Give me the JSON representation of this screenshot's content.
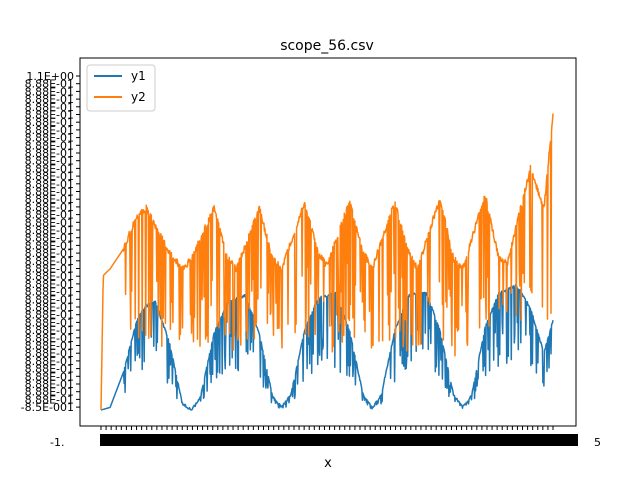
{
  "chart_data": {
    "type": "line",
    "title": "scope_56.csv",
    "xlabel": "x",
    "ylabel": "",
    "grid": false,
    "legend_position": "top-left",
    "tick_labels_note": "x-axis and y-axis tick labels are rendered as a dense overlapping smear (unreadable)",
    "x_tick_label_edges": [
      "-1.",
      "5"
    ],
    "y_tick_label_top": "1.1E+00",
    "y_tick_label_bottom": "-8.5E-001",
    "series": [
      {
        "name": "y1",
        "color": "#1f77b4",
        "envelope_x": [
          0,
          0.02,
          0.05,
          0.08,
          0.1,
          0.12,
          0.15,
          0.18,
          0.2,
          0.22,
          0.25,
          0.28,
          0.3,
          0.32,
          0.35,
          0.38,
          0.4,
          0.42,
          0.45,
          0.48,
          0.5,
          0.52,
          0.55,
          0.58,
          0.6,
          0.62,
          0.65,
          0.68,
          0.7,
          0.72,
          0.75,
          0.78,
          0.8,
          0.82,
          0.85,
          0.88,
          0.9,
          0.92,
          0.95,
          0.98,
          1.0
        ],
        "envelope_y": [
          0.0,
          0.02,
          0.3,
          0.72,
          0.82,
          0.85,
          0.55,
          0.05,
          0.0,
          0.1,
          0.6,
          0.85,
          0.88,
          0.9,
          0.6,
          0.1,
          0.02,
          0.12,
          0.62,
          0.88,
          0.9,
          0.92,
          0.62,
          0.12,
          0.02,
          0.12,
          0.62,
          0.9,
          0.92,
          0.93,
          0.62,
          0.12,
          0.02,
          0.12,
          0.65,
          0.92,
          0.95,
          0.98,
          0.8,
          0.45,
          0.7
        ]
      },
      {
        "name": "y2",
        "color": "#ff7f0e",
        "envelope_x": [
          0,
          0.005,
          0.02,
          0.05,
          0.08,
          0.1,
          0.15,
          0.18,
          0.2,
          0.25,
          0.28,
          0.3,
          0.35,
          0.38,
          0.4,
          0.45,
          0.48,
          0.5,
          0.55,
          0.58,
          0.6,
          0.65,
          0.68,
          0.7,
          0.75,
          0.78,
          0.8,
          0.85,
          0.88,
          0.9,
          0.95,
          0.98,
          1.0
        ],
        "envelope_y": [
          0.0,
          0.4,
          0.42,
          0.48,
          0.58,
          0.6,
          0.47,
          0.42,
          0.45,
          0.6,
          0.45,
          0.42,
          0.6,
          0.45,
          0.42,
          0.62,
          0.47,
          0.43,
          0.62,
          0.47,
          0.42,
          0.62,
          0.47,
          0.42,
          0.63,
          0.45,
          0.42,
          0.64,
          0.45,
          0.44,
          0.72,
          0.6,
          0.88
        ]
      }
    ]
  }
}
